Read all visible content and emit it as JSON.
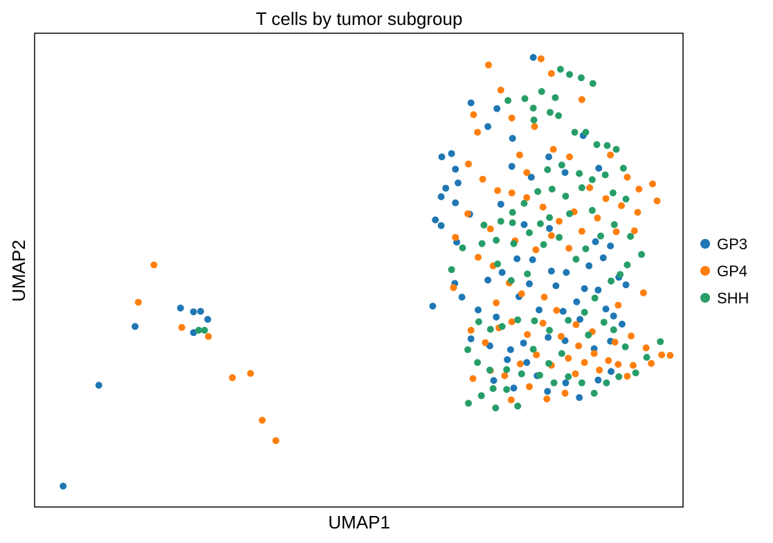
{
  "chart_data": {
    "type": "scatter",
    "title": "T cells by tumor subgroup",
    "xlabel": "UMAP1",
    "ylabel": "UMAP2",
    "xlim": [
      0,
      100
    ],
    "ylim": [
      0,
      100
    ],
    "ticks_visible": false,
    "grid": false,
    "legend_position": "right",
    "series": [
      {
        "name": "GP3",
        "color": "#1f77b4",
        "points": [
          [
            76.9,
            94.9
          ],
          [
            71.3,
            84.1
          ],
          [
            67.3,
            85.3
          ],
          [
            73.7,
            77.8
          ],
          [
            69.9,
            80.3
          ],
          [
            64.3,
            74.6
          ],
          [
            64.9,
            71.3
          ],
          [
            62.8,
            73.9
          ],
          [
            63.4,
            67.3
          ],
          [
            62.7,
            65.5
          ],
          [
            65.3,
            68.4
          ],
          [
            64.9,
            64.2
          ],
          [
            61.8,
            60.6
          ],
          [
            62.7,
            59.4
          ],
          [
            67.1,
            61.8
          ],
          [
            65.1,
            55.9
          ],
          [
            71.9,
            63.9
          ],
          [
            75.5,
            59.6
          ],
          [
            79.4,
            58.8
          ],
          [
            86.5,
            56.0
          ],
          [
            88.8,
            55.1
          ],
          [
            74.4,
            52.4
          ],
          [
            76.8,
            52.2
          ],
          [
            79.7,
            49.8
          ],
          [
            80.4,
            46.7
          ],
          [
            82.0,
            49.5
          ],
          [
            84.8,
            46.1
          ],
          [
            86.9,
            45.8
          ],
          [
            88.1,
            41.8
          ],
          [
            89.3,
            40.3
          ],
          [
            84.1,
            39.6
          ],
          [
            81.5,
            41.3
          ],
          [
            77.8,
            41.6
          ],
          [
            74.7,
            44.4
          ],
          [
            71.2,
            40.1
          ],
          [
            68.4,
            41.6
          ],
          [
            65.9,
            44.3
          ],
          [
            67.3,
            35.5
          ],
          [
            70.2,
            34.0
          ],
          [
            73.4,
            33.2
          ],
          [
            75.4,
            34.6
          ],
          [
            79.2,
            35.8
          ],
          [
            81.8,
            35.1
          ],
          [
            86.3,
            33.4
          ],
          [
            88.8,
            35.0
          ],
          [
            90.6,
            38.6
          ],
          [
            72.9,
            31.1
          ],
          [
            75.9,
            30.5
          ],
          [
            77.5,
            27.7
          ],
          [
            70.8,
            26.7
          ],
          [
            73.9,
            25.1
          ],
          [
            79.1,
            24.4
          ],
          [
            81.9,
            26.2
          ],
          [
            84.0,
            23.1
          ],
          [
            86.9,
            26.8
          ],
          [
            88.9,
            28.6
          ],
          [
            61.4,
            42.4
          ],
          [
            64.8,
            47.2
          ],
          [
            69.9,
            47.9
          ],
          [
            72.1,
            49.5
          ],
          [
            76.3,
            47.1
          ],
          [
            83.6,
            43.3
          ],
          [
            85.5,
            50.9
          ],
          [
            87.7,
            52.6
          ],
          [
            90.1,
            48.5
          ],
          [
            91.2,
            46.9
          ],
          [
            73.6,
            71.9
          ],
          [
            76.6,
            69.6
          ],
          [
            79.3,
            73.9
          ],
          [
            81.8,
            70.6
          ],
          [
            84.6,
            78.4
          ],
          [
            87.0,
            71.5
          ],
          [
            15.5,
            38.1
          ],
          [
            22.5,
            42.0
          ],
          [
            24.5,
            41.2
          ],
          [
            25.6,
            41.3
          ],
          [
            26.7,
            39.6
          ],
          [
            24.5,
            36.8
          ],
          [
            9.9,
            25.7
          ],
          [
            4.4,
            4.4
          ]
        ]
      },
      {
        "name": "GP4",
        "color": "#ff7f0e",
        "points": [
          [
            78.1,
            94.6
          ],
          [
            70.0,
            93.3
          ],
          [
            79.7,
            91.5
          ],
          [
            71.9,
            88.0
          ],
          [
            67.7,
            82.8
          ],
          [
            68.3,
            79.1
          ],
          [
            73.6,
            82.1
          ],
          [
            77.1,
            80.3
          ],
          [
            80.0,
            75.5
          ],
          [
            82.5,
            73.9
          ],
          [
            88.8,
            74.3
          ],
          [
            91.4,
            69.6
          ],
          [
            93.2,
            67.1
          ],
          [
            95.3,
            68.2
          ],
          [
            96.0,
            64.6
          ],
          [
            93.0,
            62.2
          ],
          [
            90.5,
            63.6
          ],
          [
            88.1,
            65.1
          ],
          [
            85.6,
            67.4
          ],
          [
            83.2,
            62.3
          ],
          [
            80.9,
            60.3
          ],
          [
            78.4,
            63.3
          ],
          [
            75.9,
            65.3
          ],
          [
            73.6,
            66.3
          ],
          [
            71.4,
            66.8
          ],
          [
            69.1,
            69.2
          ],
          [
            66.9,
            72.4
          ],
          [
            70.3,
            58.7
          ],
          [
            74.1,
            56.2
          ],
          [
            77.3,
            54.3
          ],
          [
            79.7,
            57.3
          ],
          [
            82.4,
            54.6
          ],
          [
            84.4,
            58.2
          ],
          [
            86.8,
            61.0
          ],
          [
            89.7,
            58.1
          ],
          [
            92.5,
            58.3
          ],
          [
            68.4,
            52.7
          ],
          [
            70.7,
            50.9
          ],
          [
            73.2,
            47.3
          ],
          [
            75.1,
            45.0
          ],
          [
            78.6,
            44.3
          ],
          [
            80.5,
            41.5
          ],
          [
            83.5,
            38.5
          ],
          [
            86.0,
            37.0
          ],
          [
            89.5,
            34.8
          ],
          [
            92.0,
            36.1
          ],
          [
            94.3,
            33.6
          ],
          [
            96.7,
            32.1
          ],
          [
            98.0,
            32.0
          ],
          [
            95.1,
            30.3
          ],
          [
            92.3,
            29.9
          ],
          [
            90.0,
            30.1
          ],
          [
            87.1,
            28.9
          ],
          [
            84.8,
            30.5
          ],
          [
            82.3,
            31.4
          ],
          [
            79.7,
            29.9
          ],
          [
            77.4,
            32.1
          ],
          [
            74.9,
            30.2
          ],
          [
            72.5,
            27.7
          ],
          [
            70.3,
            28.8
          ],
          [
            67.6,
            27.1
          ],
          [
            69.5,
            34.7
          ],
          [
            71.6,
            37.8
          ],
          [
            73.6,
            39.1
          ],
          [
            76.0,
            36.4
          ],
          [
            78.4,
            38.8
          ],
          [
            81.2,
            36.0
          ],
          [
            83.9,
            34.0
          ],
          [
            86.3,
            32.4
          ],
          [
            88.5,
            30.9
          ],
          [
            91.4,
            27.6
          ],
          [
            81.8,
            24.0
          ],
          [
            79.0,
            22.8
          ],
          [
            76.3,
            25.4
          ],
          [
            73.5,
            22.6
          ],
          [
            83.4,
            28.1
          ],
          [
            90.0,
            42.6
          ],
          [
            93.9,
            45.2
          ],
          [
            64.9,
            56.9
          ],
          [
            66.8,
            61.9
          ],
          [
            71.2,
            43.1
          ],
          [
            64.6,
            46.3
          ],
          [
            67.3,
            37.3
          ],
          [
            74.8,
            74.3
          ],
          [
            75.9,
            70.6
          ],
          [
            84.4,
            86.0
          ],
          [
            16.0,
            43.2
          ],
          [
            22.7,
            37.9
          ],
          [
            26.8,
            36.0
          ],
          [
            18.4,
            51.1
          ],
          [
            30.5,
            27.3
          ],
          [
            33.3,
            28.2
          ],
          [
            35.1,
            18.3
          ],
          [
            37.2,
            14.0
          ]
        ]
      },
      {
        "name": "SHH",
        "color": "#279e68",
        "points": [
          [
            81.1,
            92.4
          ],
          [
            82.5,
            91.3
          ],
          [
            84.3,
            90.6
          ],
          [
            86.1,
            89.4
          ],
          [
            78.2,
            87.7
          ],
          [
            80.3,
            86.4
          ],
          [
            75.6,
            86.2
          ],
          [
            73.0,
            85.8
          ],
          [
            76.9,
            84.2
          ],
          [
            79.5,
            83.3
          ],
          [
            80.8,
            82.6
          ],
          [
            77.0,
            81.7
          ],
          [
            83.3,
            79.1
          ],
          [
            85.0,
            79.1
          ],
          [
            86.7,
            76.5
          ],
          [
            88.3,
            76.3
          ],
          [
            89.7,
            75.5
          ],
          [
            90.8,
            71.5
          ],
          [
            88.0,
            70.1
          ],
          [
            86.0,
            69.1
          ],
          [
            84.4,
            67.4
          ],
          [
            81.9,
            65.6
          ],
          [
            79.8,
            67.1
          ],
          [
            77.6,
            66.6
          ],
          [
            75.5,
            64.1
          ],
          [
            73.7,
            62.2
          ],
          [
            71.9,
            60.3
          ],
          [
            69.3,
            59.5
          ],
          [
            71.2,
            56.3
          ],
          [
            73.9,
            55.6
          ],
          [
            76.3,
            57.9
          ],
          [
            78.5,
            55.4
          ],
          [
            80.9,
            56.9
          ],
          [
            83.5,
            52.3
          ],
          [
            85.0,
            54.5
          ],
          [
            87.3,
            57.2
          ],
          [
            89.4,
            59.6
          ],
          [
            91.9,
            57.1
          ],
          [
            93.6,
            53.3
          ],
          [
            91.4,
            51.1
          ],
          [
            90.3,
            49.1
          ],
          [
            88.9,
            47.7
          ],
          [
            86.4,
            44.1
          ],
          [
            84.8,
            41.1
          ],
          [
            82.3,
            39.4
          ],
          [
            79.4,
            37.3
          ],
          [
            77.1,
            39.3
          ],
          [
            74.5,
            39.5
          ],
          [
            72.1,
            38.1
          ],
          [
            70.3,
            37.5
          ],
          [
            68.5,
            39.1
          ],
          [
            66.8,
            33.2
          ],
          [
            68.3,
            30.5
          ],
          [
            70.2,
            28.9
          ],
          [
            72.8,
            29.0
          ],
          [
            75.1,
            28.1
          ],
          [
            77.9,
            27.8
          ],
          [
            80.1,
            26.2
          ],
          [
            82.3,
            27.5
          ],
          [
            84.4,
            26.2
          ],
          [
            86.3,
            24.0
          ],
          [
            88.2,
            26.2
          ],
          [
            90.1,
            27.5
          ],
          [
            92.7,
            28.3
          ],
          [
            94.4,
            31.6
          ],
          [
            96.5,
            34.9
          ],
          [
            91.1,
            33.8
          ],
          [
            89.3,
            37.4
          ],
          [
            87.8,
            39.0
          ],
          [
            85.4,
            36.3
          ],
          [
            81.3,
            32.4
          ],
          [
            79.3,
            30.3
          ],
          [
            76.9,
            33.3
          ],
          [
            72.8,
            24.8
          ],
          [
            70.7,
            25.0
          ],
          [
            68.9,
            23.5
          ],
          [
            66.9,
            21.9
          ],
          [
            74.5,
            21.3
          ],
          [
            71.1,
            20.9
          ],
          [
            73.5,
            47.8
          ],
          [
            76.0,
            49.2
          ],
          [
            71.4,
            51.3
          ],
          [
            69.0,
            55.6
          ],
          [
            66.0,
            54.7
          ],
          [
            64.3,
            50.1
          ],
          [
            73.7,
            60.0
          ],
          [
            86.0,
            62.6
          ],
          [
            82.5,
            61.9
          ],
          [
            79.4,
            61.1
          ],
          [
            78.0,
            59.8
          ],
          [
            84.0,
            70.4
          ],
          [
            81.3,
            72.2
          ],
          [
            79.1,
            71.2
          ],
          [
            89.2,
            66.3
          ],
          [
            91.2,
            65.0
          ],
          [
            26.2,
            37.3
          ],
          [
            25.3,
            37.3
          ]
        ]
      }
    ]
  }
}
